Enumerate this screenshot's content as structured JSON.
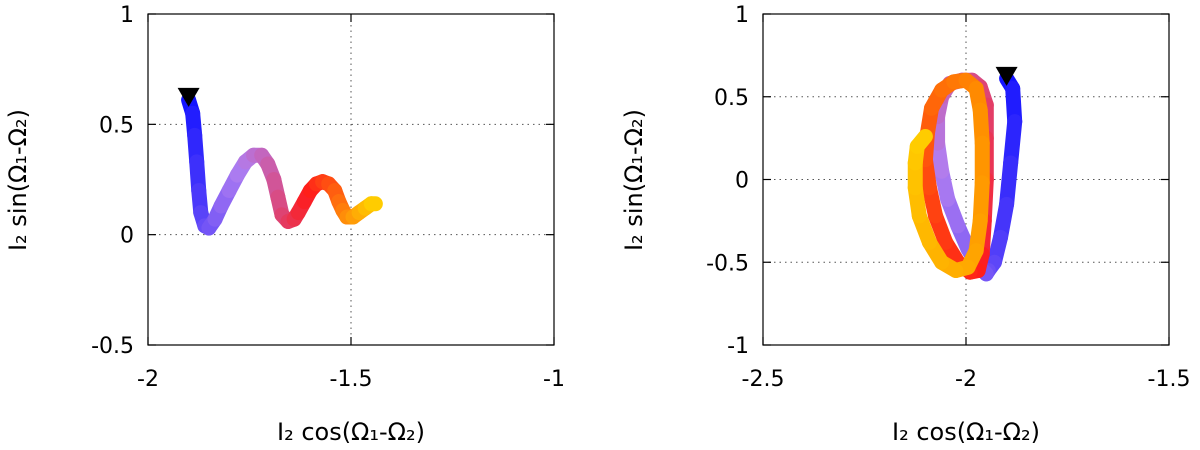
{
  "chart_data": [
    {
      "type": "line",
      "title": "",
      "xlabel": "I₂ cos(Ω₁-Ω₂)",
      "ylabel": "I₂ sin(Ω₁-Ω₂)",
      "xlim": [
        -2,
        -1
      ],
      "ylim": [
        -0.5,
        1
      ],
      "xticks": [
        -2,
        -1.5,
        -1
      ],
      "xtick_labels": [
        "-2",
        "-1.5",
        "-1"
      ],
      "yticks": [
        -0.5,
        0,
        0.5,
        1
      ],
      "ytick_labels": [
        "-0.5",
        "0",
        "0.5",
        "1"
      ],
      "grid": true,
      "color_gradient": [
        "#1414ff",
        "#b07ef0",
        "#ff1a1a",
        "#ffcc00"
      ],
      "start_marker": "black-down-triangle",
      "start_point": [
        -1.9,
        0.62
      ],
      "series": [
        {
          "x": [
            -1.9,
            -1.89,
            -1.885,
            -1.88,
            -1.875,
            -1.87,
            -1.86,
            -1.85,
            -1.835,
            -1.82,
            -1.8,
            -1.78,
            -1.76,
            -1.74,
            -1.72,
            -1.705,
            -1.69,
            -1.68,
            -1.67,
            -1.655,
            -1.64,
            -1.63,
            -1.615,
            -1.6,
            -1.585,
            -1.57,
            -1.555,
            -1.54,
            -1.53,
            -1.52,
            -1.51,
            -1.495,
            -1.48,
            -1.465,
            -1.45,
            -1.44
          ],
          "y": [
            0.61,
            0.55,
            0.45,
            0.33,
            0.2,
            0.1,
            0.04,
            0.03,
            0.07,
            0.13,
            0.2,
            0.27,
            0.33,
            0.36,
            0.36,
            0.32,
            0.25,
            0.17,
            0.09,
            0.06,
            0.07,
            0.1,
            0.15,
            0.2,
            0.23,
            0.24,
            0.23,
            0.2,
            0.15,
            0.11,
            0.08,
            0.08,
            0.1,
            0.12,
            0.14,
            0.14
          ]
        }
      ]
    },
    {
      "type": "line",
      "title": "",
      "xlabel": "I₂ cos(Ω₁-Ω₂)",
      "ylabel": "I₂ sin(Ω₁-Ω₂)",
      "xlim": [
        -2.5,
        -1.5
      ],
      "ylim": [
        -1,
        1
      ],
      "xticks": [
        -2.5,
        -2,
        -1.5
      ],
      "xtick_labels": [
        "-2.5",
        "-2",
        "-1.5"
      ],
      "yticks": [
        -1,
        -0.5,
        0,
        0.5,
        1
      ],
      "ytick_labels": [
        "-1",
        "-0.5",
        "0",
        "0.5",
        "1"
      ],
      "grid": true,
      "color_gradient": [
        "#1414ff",
        "#b07ef0",
        "#ff1a1a",
        "#ff8c00",
        "#ffcc00"
      ],
      "start_marker": "black-down-triangle",
      "start_point": [
        -1.9,
        0.62
      ],
      "series": [
        {
          "x": [
            -1.9,
            -1.885,
            -1.88,
            -1.89,
            -1.9,
            -1.915,
            -1.93,
            -1.945,
            -1.95,
            -1.97,
            -1.995,
            -2.02,
            -2.045,
            -2.06,
            -2.07,
            -2.07,
            -2.06,
            -2.04,
            -2.01,
            -1.985,
            -1.965,
            -1.95,
            -1.95,
            -1.95,
            -1.955,
            -1.96,
            -1.97,
            -1.99,
            -2.02,
            -2.05,
            -2.075,
            -2.09,
            -2.1,
            -2.095,
            -2.085,
            -2.06,
            -2.03,
            -2.0,
            -1.975,
            -1.965,
            -1.96,
            -1.96,
            -1.965,
            -1.975,
            -1.995,
            -2.025,
            -2.06,
            -2.09,
            -2.115,
            -2.125,
            -2.125,
            -2.12,
            -2.1
          ],
          "y": [
            0.61,
            0.55,
            0.35,
            0.1,
            -0.15,
            -0.35,
            -0.5,
            -0.55,
            -0.57,
            -0.52,
            -0.42,
            -0.28,
            -0.12,
            0.05,
            0.22,
            0.38,
            0.5,
            0.58,
            0.6,
            0.6,
            0.56,
            0.45,
            0.25,
            0.0,
            -0.25,
            -0.45,
            -0.55,
            -0.56,
            -0.5,
            -0.38,
            -0.22,
            -0.05,
            0.12,
            0.28,
            0.43,
            0.54,
            0.59,
            0.6,
            0.55,
            0.42,
            0.22,
            -0.02,
            -0.25,
            -0.43,
            -0.53,
            -0.55,
            -0.5,
            -0.38,
            -0.22,
            -0.05,
            0.1,
            0.2,
            0.26
          ]
        }
      ]
    }
  ]
}
